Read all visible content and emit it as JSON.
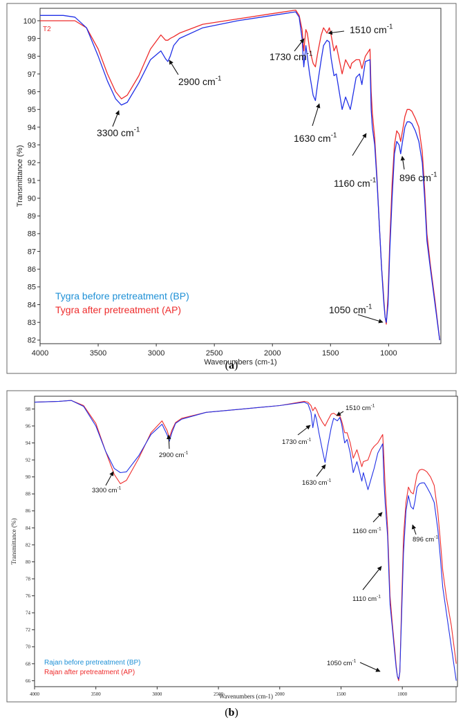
{
  "subcaptions": [
    {
      "open": "(",
      "letter": "a",
      "close": ")"
    },
    {
      "open": "(",
      "letter": "b",
      "close": ")"
    }
  ],
  "colors": {
    "bp": "#1f2fe6",
    "ap": "#ee2b2b",
    "legend_bp": "#1e90d6",
    "legend_ap": "#ee2b2b"
  },
  "chart_data": [
    {
      "type": "line",
      "title": "",
      "corner_label": "T2",
      "xlabel": "Wavenumbers (cm-1)",
      "ylabel": "Transmittance (%)",
      "xlim": [
        4000,
        550
      ],
      "x_reversed": true,
      "ylim": [
        81.8,
        100.7
      ],
      "xticks": [
        4000,
        3500,
        3000,
        2500,
        2000,
        1500,
        1000
      ],
      "yticks": [
        82,
        83,
        84,
        85,
        86,
        87,
        88,
        89,
        90,
        91,
        92,
        93,
        94,
        95,
        96,
        97,
        98,
        99,
        100
      ],
      "grid": false,
      "legend_position": "bottom-left",
      "series": [
        {
          "name": "Tygra before pretreatment (BP)",
          "color": "#1f2fe6",
          "x": [
            4000,
            3800,
            3700,
            3600,
            3500,
            3420,
            3350,
            3300,
            3250,
            3150,
            3050,
            2960,
            2920,
            2900,
            2880,
            2850,
            2800,
            2600,
            2300,
            2000,
            1800,
            1770,
            1745,
            1730,
            1712,
            1700,
            1680,
            1650,
            1630,
            1610,
            1580,
            1560,
            1530,
            1510,
            1495,
            1470,
            1450,
            1425,
            1400,
            1370,
            1330,
            1318,
            1280,
            1250,
            1230,
            1200,
            1160,
            1150,
            1140,
            1120,
            1100,
            1080,
            1060,
            1050,
            1040,
            1030,
            1020,
            1005,
            990,
            970,
            950,
            930,
            910,
            896,
            880,
            860,
            840,
            820,
            800,
            770,
            740,
            710,
            690,
            670,
            640,
            600,
            560
          ],
          "y": [
            100.3,
            100.3,
            100.2,
            99.6,
            98.0,
            96.6,
            95.6,
            95.25,
            95.4,
            96.5,
            97.8,
            98.3,
            97.85,
            97.7,
            98.0,
            98.6,
            99.0,
            99.6,
            100.0,
            100.3,
            100.5,
            100.2,
            99.0,
            97.4,
            98.6,
            98.0,
            97.0,
            95.8,
            95.5,
            96.5,
            97.8,
            98.6,
            98.9,
            98.8,
            97.9,
            96.9,
            97.0,
            96.0,
            95.0,
            95.7,
            95.0,
            95.4,
            96.8,
            97.0,
            96.4,
            97.7,
            97.8,
            95.0,
            94.0,
            93.0,
            91.0,
            88.5,
            86.0,
            85.0,
            84.0,
            83.3,
            83.0,
            84.0,
            87.0,
            90.0,
            92.5,
            93.2,
            93.0,
            92.5,
            93.2,
            94.0,
            94.3,
            94.3,
            94.2,
            93.8,
            93.2,
            92.0,
            90.0,
            87.6,
            86.0,
            84.0,
            82.0
          ]
        },
        {
          "name": "Tygra after pretreatment (AP)",
          "color": "#ee2b2b",
          "x": [
            4000,
            3800,
            3700,
            3600,
            3500,
            3420,
            3350,
            3300,
            3250,
            3150,
            3050,
            2960,
            2920,
            2900,
            2880,
            2850,
            2800,
            2600,
            2300,
            2000,
            1800,
            1770,
            1745,
            1730,
            1712,
            1700,
            1680,
            1650,
            1630,
            1610,
            1580,
            1560,
            1530,
            1510,
            1495,
            1470,
            1450,
            1425,
            1400,
            1370,
            1330,
            1318,
            1280,
            1250,
            1230,
            1200,
            1160,
            1150,
            1140,
            1120,
            1100,
            1080,
            1060,
            1050,
            1040,
            1030,
            1020,
            1005,
            990,
            970,
            950,
            930,
            910,
            896,
            880,
            860,
            840,
            820,
            800,
            770,
            740,
            710,
            690,
            670,
            640,
            600,
            560
          ],
          "y": [
            100.0,
            100.0,
            100.0,
            99.6,
            98.4,
            97.0,
            96.0,
            95.6,
            95.8,
            96.9,
            98.4,
            99.2,
            98.9,
            98.9,
            99.0,
            99.1,
            99.3,
            99.8,
            100.1,
            100.4,
            100.6,
            100.3,
            99.5,
            98.3,
            99.5,
            99.3,
            98.4,
            97.6,
            97.4,
            98.2,
            99.2,
            99.6,
            99.3,
            99.6,
            99.2,
            98.3,
            98.6,
            97.8,
            97.0,
            97.8,
            97.3,
            97.6,
            97.8,
            97.8,
            97.3,
            98.0,
            98.4,
            96.0,
            94.8,
            93.4,
            91.2,
            88.5,
            86.0,
            85.2,
            84.2,
            83.3,
            82.9,
            84.5,
            87.5,
            90.8,
            93.0,
            93.8,
            93.6,
            93.2,
            93.8,
            94.6,
            95.0,
            95.0,
            94.9,
            94.5,
            94.0,
            92.6,
            90.5,
            88.0,
            86.2,
            84.2,
            82.0
          ]
        }
      ],
      "annotations": [
        {
          "label": "3300 cm",
          "sup": "-1"
        },
        {
          "label": "2900 cm",
          "sup": "-1"
        },
        {
          "label": "1730 cm",
          "sup": "-1"
        },
        {
          "label": "1510 cm",
          "sup": "-1"
        },
        {
          "label": "1630 cm",
          "sup": "-1"
        },
        {
          "label": "1160 cm",
          "sup": "-1"
        },
        {
          "label": "896 cm",
          "sup": "-1"
        },
        {
          "label": "1050 cm",
          "sup": "-1"
        }
      ]
    },
    {
      "type": "line",
      "title": "",
      "xlabel": "Wavenumbers (cm-1)",
      "ylabel": "Transmittance (%)",
      "xlim": [
        4000,
        550
      ],
      "x_reversed": true,
      "ylim": [
        65.3,
        99.5
      ],
      "xticks": [
        4000,
        3500,
        3000,
        2500,
        2000,
        1500,
        1000
      ],
      "yticks": [
        66,
        68,
        70,
        72,
        74,
        76,
        78,
        80,
        82,
        84,
        86,
        88,
        90,
        92,
        94,
        96,
        98
      ],
      "grid": false,
      "legend_position": "bottom-left",
      "series": [
        {
          "name": "Rajan before pretreatment (BP)",
          "color": "#1f2fe6",
          "x": [
            4000,
            3800,
            3700,
            3600,
            3500,
            3420,
            3350,
            3300,
            3250,
            3150,
            3050,
            2960,
            2920,
            2900,
            2880,
            2850,
            2800,
            2600,
            2300,
            2000,
            1800,
            1770,
            1745,
            1730,
            1712,
            1700,
            1680,
            1650,
            1630,
            1610,
            1580,
            1560,
            1530,
            1510,
            1495,
            1470,
            1450,
            1425,
            1400,
            1370,
            1330,
            1318,
            1280,
            1250,
            1230,
            1200,
            1160,
            1150,
            1140,
            1120,
            1110,
            1100,
            1080,
            1060,
            1050,
            1040,
            1030,
            1020,
            1005,
            990,
            970,
            950,
            930,
            910,
            896,
            880,
            860,
            840,
            820,
            800,
            770,
            740,
            710,
            690,
            670,
            640,
            600,
            560
          ],
          "y": [
            98.8,
            98.9,
            99.0,
            98.3,
            96.0,
            93.0,
            91.0,
            90.5,
            90.6,
            92.5,
            95.0,
            96.2,
            95.0,
            94.2,
            95.2,
            96.3,
            96.8,
            97.6,
            98.0,
            98.4,
            98.8,
            98.6,
            97.6,
            95.8,
            97.4,
            96.8,
            95.2,
            93.0,
            91.7,
            93.5,
            95.8,
            96.9,
            96.6,
            97.0,
            96.2,
            94.0,
            94.4,
            92.8,
            90.5,
            91.8,
            89.5,
            90.5,
            88.5,
            90.0,
            91.0,
            92.8,
            93.9,
            89.5,
            87.0,
            83.0,
            78.7,
            75.0,
            72.0,
            69.0,
            67.5,
            66.5,
            66.2,
            67.0,
            74.0,
            81.0,
            86.0,
            87.8,
            86.5,
            86.2,
            87.2,
            88.8,
            89.2,
            89.3,
            89.3,
            88.8,
            88.0,
            87.0,
            83.8,
            80.5,
            77.0,
            74.0,
            70.0,
            66.0
          ]
        },
        {
          "name": "Rajan after pretreatment (AP)",
          "color": "#ee2b2b",
          "x": [
            4000,
            3800,
            3700,
            3600,
            3500,
            3420,
            3350,
            3300,
            3250,
            3150,
            3050,
            2960,
            2920,
            2900,
            2880,
            2850,
            2800,
            2600,
            2300,
            2000,
            1800,
            1770,
            1745,
            1730,
            1712,
            1700,
            1680,
            1650,
            1630,
            1610,
            1580,
            1560,
            1530,
            1510,
            1495,
            1470,
            1450,
            1425,
            1400,
            1370,
            1330,
            1318,
            1280,
            1250,
            1230,
            1200,
            1160,
            1150,
            1140,
            1120,
            1110,
            1100,
            1080,
            1060,
            1050,
            1040,
            1030,
            1020,
            1005,
            990,
            970,
            950,
            930,
            910,
            896,
            880,
            860,
            840,
            820,
            800,
            770,
            740,
            710,
            690,
            670,
            640,
            600,
            560
          ],
          "y": [
            98.8,
            98.9,
            99.0,
            98.4,
            96.3,
            93.0,
            90.3,
            89.2,
            89.6,
            92.2,
            95.2,
            96.6,
            95.5,
            94.6,
            95.5,
            96.4,
            96.9,
            97.6,
            98.0,
            98.4,
            98.9,
            98.8,
            98.4,
            97.8,
            98.2,
            97.9,
            97.2,
            96.4,
            96.0,
            96.6,
            97.4,
            97.5,
            97.2,
            97.2,
            96.6,
            95.2,
            95.2,
            94.0,
            92.2,
            93.2,
            91.2,
            91.8,
            92.0,
            93.2,
            93.6,
            94.0,
            95.0,
            92.2,
            89.0,
            84.0,
            80.0,
            76.0,
            72.5,
            69.5,
            67.8,
            66.5,
            66.0,
            67.0,
            75.5,
            83.0,
            87.0,
            88.8,
            88.2,
            88.0,
            89.0,
            90.3,
            90.8,
            90.9,
            90.8,
            90.6,
            90.0,
            89.0,
            85.8,
            82.5,
            79.0,
            75.8,
            72.5,
            68.0
          ]
        }
      ],
      "annotations": [
        {
          "label": "3300 cm",
          "sup": "-1"
        },
        {
          "label": "2900 cm",
          "sup": "-1"
        },
        {
          "label": "1730 cm",
          "sup": "-1"
        },
        {
          "label": "1510 cm",
          "sup": "-1"
        },
        {
          "label": "1630 cm",
          "sup": "-1"
        },
        {
          "label": "1160 cm",
          "sup": "-1"
        },
        {
          "label": "896 cm",
          "sup": "-1"
        },
        {
          "label": "1110 cm",
          "sup": "-1"
        },
        {
          "label": "1050 cm",
          "sup": "-1"
        }
      ]
    }
  ]
}
